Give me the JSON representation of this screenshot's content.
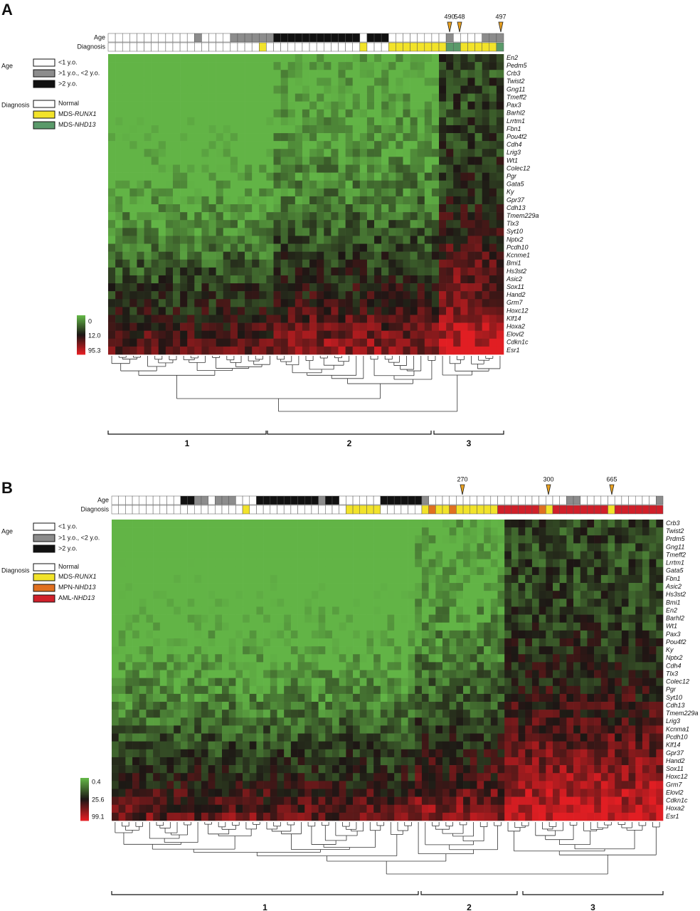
{
  "panels": [
    {
      "label": "A",
      "track_labels": [
        "Age",
        "Diagnosis"
      ],
      "markers": [
        "490",
        "548",
        "497"
      ],
      "legend": {
        "age_title": "Age",
        "age_items": [
          "<1 y.o.",
          ">1 y.o., <2 y.o.",
          ">2 y.o."
        ],
        "diagnosis_title": "Diagnosis",
        "diagnosis_items": [
          {
            "text": "Normal"
          },
          {
            "text": "MDS-",
            "italic": "RUNX1"
          },
          {
            "text": "MDS-",
            "italic": "NHD13"
          }
        ]
      },
      "scale_labels": [
        "0",
        "12.0",
        "95.3"
      ],
      "genes": [
        "En2",
        "Pedm5",
        "Crb3",
        "Twist2",
        "Gng11",
        "Tmeff2",
        "Pax3",
        "Barhl2",
        "Lrrtm1",
        "Fbn1",
        "Pou4f2",
        "Cdh4",
        "Lrig3",
        "Wt1",
        "Colec12",
        "Pgr",
        "Gata5",
        "Ky",
        "Gpr37",
        "Cdh13",
        "Tmem229a",
        "Tlx3",
        "Syt10",
        "Nptx2",
        "Pcdh10",
        "Kcnme1",
        "Bmi1",
        "Hs3st2",
        "Asic2",
        "Sox11",
        "Hand2",
        "Grm7",
        "Hoxc12",
        "Klf14",
        "Hoxa2",
        "Elovl2",
        "Cdkn1c",
        "Esr1"
      ],
      "clusters": [
        "1",
        "2",
        "3"
      ]
    },
    {
      "label": "B",
      "track_labels": [
        "Age",
        "Diagnosis"
      ],
      "markers": [
        "270",
        "300",
        "665"
      ],
      "legend": {
        "age_title": "Age",
        "age_items": [
          "<1 y.o.",
          ">1 y.o., <2 y.o.",
          ">2 y.o."
        ],
        "diagnosis_title": "Diagnosis",
        "diagnosis_items": [
          {
            "text": "Normal"
          },
          {
            "text": "MDS-",
            "italic": "RUNX1"
          },
          {
            "text": "MPN-",
            "italic": "NHD13"
          },
          {
            "text": "AML-",
            "italic": "NHD13"
          }
        ]
      },
      "scale_labels": [
        "0.4",
        "25.6",
        "99.1"
      ],
      "genes": [
        "Crb3",
        "Twist2",
        "Prdm5",
        "Gng11",
        "Tmeff2",
        "Lrrtm1",
        "Gata5",
        "Fbn1",
        "Asic2",
        "Hs3st2",
        "Bmi1",
        "En2",
        "Barhl2",
        "Wt1",
        "Pax3",
        "Pou4f2",
        "Ky",
        "Nptx2",
        "Cdh4",
        "Tlx3",
        "Colec12",
        "Pgr",
        "Syt10",
        "Cdh13",
        "Tmem229a",
        "Lrig3",
        "Kcnma1",
        "Pcdh10",
        "Klf14",
        "Gpr37",
        "Hand2",
        "Sox11",
        "Hoxc12",
        "Grm7",
        "Elovl2",
        "Cdkn1c",
        "Hoxa2",
        "Esr1"
      ],
      "clusters": [
        "1",
        "2",
        "3"
      ]
    }
  ]
}
